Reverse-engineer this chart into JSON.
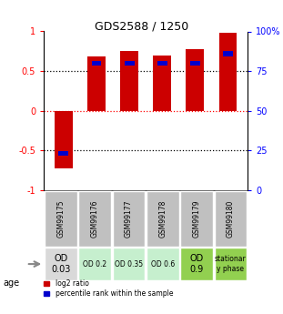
{
  "title": "GDS2588 / 1250",
  "samples": [
    "GSM99175",
    "GSM99176",
    "GSM99177",
    "GSM99178",
    "GSM99179",
    "GSM99180"
  ],
  "log2_ratio": [
    -0.72,
    0.68,
    0.75,
    0.7,
    0.78,
    0.98
  ],
  "percentile_rank_scaled": [
    -0.54,
    0.6,
    0.6,
    0.6,
    0.6,
    0.72
  ],
  "age_labels": [
    "OD\n0.03",
    "OD 0.2",
    "OD 0.35",
    "OD 0.6",
    "OD\n0.9",
    "stationar\ny phase"
  ],
  "age_colors": [
    "#d9d9d9",
    "#c6efce",
    "#c6efce",
    "#c6efce",
    "#92d050",
    "#92d050"
  ],
  "sample_bg_color": "#c0c0c0",
  "bar_color_red": "#cc0000",
  "bar_color_blue": "#0000cc",
  "ylim": [
    -1,
    1
  ],
  "yticks_left": [
    -1,
    -0.5,
    0,
    0.5,
    1
  ],
  "yticks_right": [
    0,
    25,
    50,
    75,
    100
  ],
  "legend_red": "log2 ratio",
  "legend_blue": "percentile rank within the sample"
}
